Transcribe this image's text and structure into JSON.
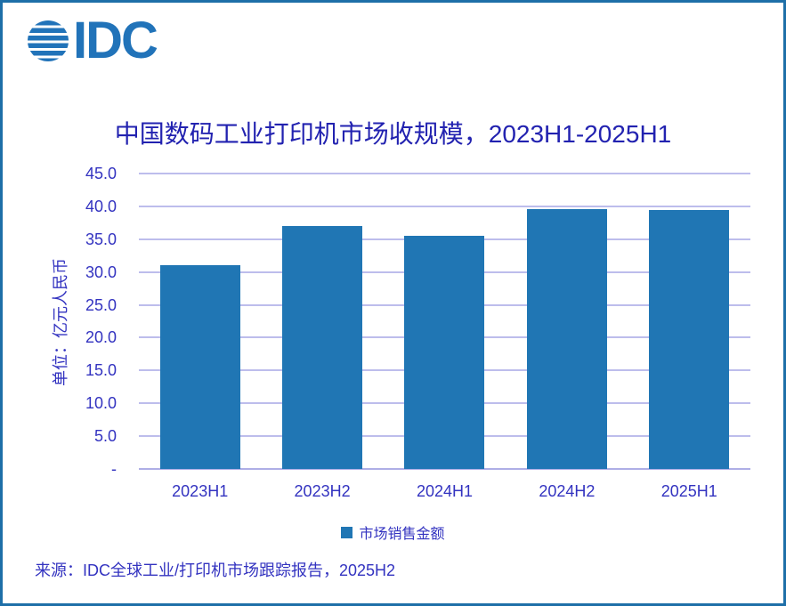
{
  "logo": {
    "text": "IDC"
  },
  "chart_data": {
    "type": "bar",
    "title": "中国数码工业打印机市场收规模，2023H1-2025H1",
    "categories": [
      "2023H1",
      "2023H2",
      "2024H1",
      "2024H2",
      "2025H1"
    ],
    "values": [
      31.0,
      37.0,
      35.5,
      39.6,
      39.4
    ],
    "series_name": "市场销售金额",
    "xlabel": "",
    "ylabel": "单位：亿元人民币",
    "ylim": [
      0,
      45
    ],
    "ytick_values": [
      0,
      5,
      10,
      15,
      20,
      25,
      30,
      35,
      40,
      45
    ],
    "ytick_labels": [
      "-",
      "5.0",
      "10.0",
      "15.0",
      "20.0",
      "25.0",
      "30.0",
      "35.0",
      "40.0",
      "45.0"
    ],
    "grid": true,
    "legend_position": "bottom",
    "bar_color": "#2076B4"
  },
  "legend": {
    "label": "市场销售金额",
    "marker_color": "#2076B4"
  },
  "source_note": "来源：IDC全球工业/打印机市场跟踪报告，2025H2",
  "colors": {
    "title": "#2222B0",
    "axis_text": "#3333C0",
    "gridline": "#BDBDEC",
    "bar": "#2076B4",
    "border": "#1E6FA8",
    "logo": "#2173B9"
  }
}
